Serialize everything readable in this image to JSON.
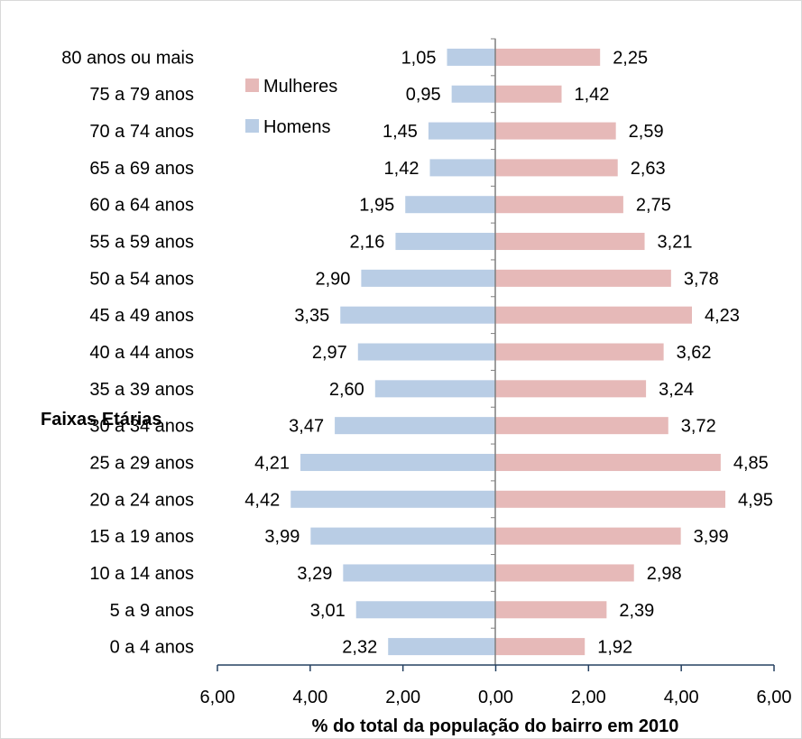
{
  "chart_data": {
    "type": "bar",
    "orientation": "horizontal-population-pyramid",
    "categories": [
      "0 a 4 anos",
      "5 a 9 anos",
      "10 a 14 anos",
      "15 a 19 anos",
      "20 a 24 anos",
      "25 a 29 anos",
      "30 a 34 anos",
      "35 a 39 anos",
      "40 a 44 anos",
      "45 a 49 anos",
      "50 a 54 anos",
      "55 a 59 anos",
      "60 a 64 anos",
      "65 a 69 anos",
      "70 a 74 anos",
      "75 a 79 anos",
      "80 anos ou mais"
    ],
    "series": [
      {
        "name": "Homens",
        "color": "#b9cde5",
        "side": "left",
        "values": [
          2.32,
          3.01,
          3.29,
          3.99,
          4.42,
          4.21,
          3.47,
          2.6,
          2.97,
          3.35,
          2.9,
          2.16,
          1.95,
          1.42,
          1.45,
          0.95,
          1.05
        ],
        "labels": [
          "2,32",
          "3,01",
          "3,29",
          "3,99",
          "4,42",
          "4,21",
          "3,47",
          "2,60",
          "2,97",
          "3,35",
          "2,90",
          "2,16",
          "1,95",
          "1,42",
          "1,45",
          "0,95",
          "1,05"
        ]
      },
      {
        "name": "Mulheres",
        "color": "#e6b9b8",
        "side": "right",
        "values": [
          1.92,
          2.39,
          2.98,
          3.99,
          4.95,
          4.85,
          3.72,
          3.24,
          3.62,
          4.23,
          3.78,
          3.21,
          2.75,
          2.63,
          2.59,
          1.42,
          2.25
        ],
        "labels": [
          "1,92",
          "2,39",
          "2,98",
          "3,99",
          "4,95",
          "4,85",
          "3,72",
          "3,24",
          "3,62",
          "4,23",
          "3,78",
          "3,21",
          "2,75",
          "2,63",
          "2,59",
          "1,42",
          "2,25"
        ]
      }
    ],
    "xlim": [
      -6,
      6
    ],
    "xticks": [
      -6,
      -4,
      -2,
      0,
      2,
      4,
      6
    ],
    "xtick_labels": [
      "6,00",
      "4,00",
      "2,00",
      "0,00",
      "2,00",
      "4,00",
      "6,00"
    ],
    "xlabel": "% do total da população do bairro em 2010",
    "ylabel": "Faixas Etárias",
    "grid": false,
    "legend": {
      "position": "top-left",
      "order": [
        "Mulheres",
        "Homens"
      ]
    }
  }
}
